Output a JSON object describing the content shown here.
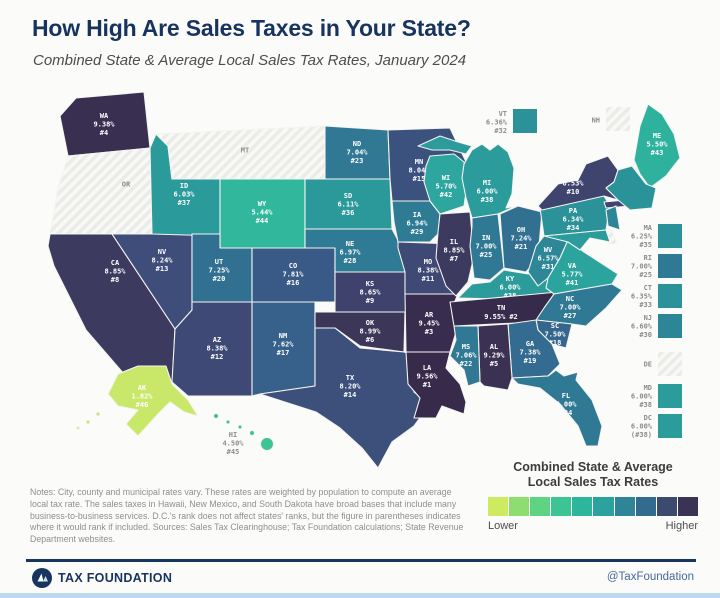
{
  "header": {
    "title": "How High Are Sales Taxes in Your State?",
    "subtitle": "Combined State & Average Local Sales Tax Rates, January 2024"
  },
  "legend": {
    "title_line1": "Combined State & Average",
    "title_line2": "Local Sales Tax Rates",
    "lower_label": "Lower",
    "higher_label": "Higher",
    "ramp": [
      "#cdea61",
      "#8edd70",
      "#5ed384",
      "#3cc495",
      "#2eb69c",
      "#2aa39e",
      "#2e8597",
      "#336b8e",
      "#3d4a6f",
      "#3b3354"
    ]
  },
  "notes": "Notes: City, county and municipal rates vary. These rates are weighted by population to compute an average local tax rate. The sales taxes in Hawaii, New Mexico, and South Dakota have broad bases that include many business-to-business services. D.C.'s rank does not affect states' ranks, but the figure in parentheses indicates where it would rank if included. Sources: Sales Tax Clearinghouse; Tax Foundation calculations; State Revenue Department websites.",
  "footer": {
    "brand": "TAX FOUNDATION",
    "handle": "@TaxFoundation"
  },
  "states": {
    "WA": {
      "abbr": "WA",
      "rate": "9.38%",
      "rank": "#4",
      "color": "#392f50"
    },
    "OR": {
      "abbr": "OR",
      "color": "hatch"
    },
    "CA": {
      "abbr": "CA",
      "rate": "8.85%",
      "rank": "#8",
      "color": "#3d3a60"
    },
    "NV": {
      "abbr": "NV",
      "rate": "8.24%",
      "rank": "#13",
      "color": "#3e4d79"
    },
    "ID": {
      "abbr": "ID",
      "rate": "6.03%",
      "rank": "#37",
      "color": "#2b9a9b"
    },
    "MT": {
      "abbr": "MT",
      "color": "hatch"
    },
    "WY": {
      "abbr": "WY",
      "rate": "5.44%",
      "rank": "#44",
      "color": "#31b89c"
    },
    "UT": {
      "abbr": "UT",
      "rate": "7.25%",
      "rank": "#20",
      "color": "#327092"
    },
    "CO": {
      "abbr": "CO",
      "rate": "7.81%",
      "rank": "#16",
      "color": "#395a86"
    },
    "AZ": {
      "abbr": "AZ",
      "rate": "8.38%",
      "rank": "#12",
      "color": "#3f4975"
    },
    "NM": {
      "abbr": "NM",
      "rate": "7.62%",
      "rank": "#17",
      "color": "#37618b"
    },
    "ND": {
      "abbr": "ND",
      "rate": "7.04%",
      "rank": "#23",
      "color": "#307893"
    },
    "SD": {
      "abbr": "SD",
      "rate": "6.11%",
      "rank": "#36",
      "color": "#2b989a"
    },
    "NE": {
      "abbr": "NE",
      "rate": "6.97%",
      "rank": "#28",
      "color": "#2f7a94"
    },
    "KS": {
      "abbr": "KS",
      "rate": "8.65%",
      "rank": "#9",
      "color": "#3f426c"
    },
    "OK": {
      "abbr": "OK",
      "rate": "8.99%",
      "rank": "#6",
      "color": "#3c3659"
    },
    "TX": {
      "abbr": "TX",
      "rate": "8.20%",
      "rank": "#14",
      "color": "#3d4f7b"
    },
    "MN": {
      "abbr": "MN",
      "rate": "8.04%",
      "rank": "#15",
      "color": "#3c527e"
    },
    "IA": {
      "abbr": "IA",
      "rate": "6.94%",
      "rank": "#29",
      "color": "#2f7b94"
    },
    "MO": {
      "abbr": "MO",
      "rate": "8.38%",
      "rank": "#11",
      "color": "#3f4975"
    },
    "AR": {
      "abbr": "AR",
      "rate": "9.45%",
      "rank": "#3",
      "color": "#382d4e"
    },
    "LA": {
      "abbr": "LA",
      "rate": "9.56%",
      "rank": "#1",
      "color": "#372a4b"
    },
    "WI": {
      "abbr": "WI",
      "rate": "5.70%",
      "rank": "#42",
      "color": "#2ca69e"
    },
    "MI": {
      "abbr": "MI",
      "rate": "6.00%",
      "rank": "#38",
      "color": "#2b9b9b"
    },
    "IL": {
      "abbr": "IL",
      "rate": "8.85%",
      "rank": "#7",
      "color": "#3d3a60"
    },
    "IN": {
      "abbr": "IN",
      "rate": "7.00%",
      "rank": "#25",
      "color": "#307994"
    },
    "OH": {
      "abbr": "OH",
      "rate": "7.24%",
      "rank": "#21",
      "color": "#327092"
    },
    "KY": {
      "abbr": "KY",
      "rate": "6.00%",
      "rank": "#38",
      "color": "#2b9b9b"
    },
    "WV": {
      "abbr": "WV",
      "rate": "6.57%",
      "rank": "#31",
      "color": "#2d8797"
    },
    "VA": {
      "abbr": "VA",
      "rate": "5.77%",
      "rank": "#41",
      "color": "#2ba49e"
    },
    "TN": {
      "abbr": "TN",
      "rate": "9.55%",
      "rank": "#2",
      "color": "#372b4c"
    },
    "NC": {
      "abbr": "NC",
      "rate": "7.00%",
      "rank": "#27",
      "color": "#307994"
    },
    "SC": {
      "abbr": "SC",
      "rate": "7.50%",
      "rank": "#18",
      "color": "#35668e"
    },
    "GA": {
      "abbr": "GA",
      "rate": "7.38%",
      "rank": "#19",
      "color": "#346b90"
    },
    "AL": {
      "abbr": "AL",
      "rate": "9.29%",
      "rank": "#5",
      "color": "#3a3153"
    },
    "MS": {
      "abbr": "MS",
      "rate": "7.06%",
      "rank": "#22",
      "color": "#307893"
    },
    "FL": {
      "abbr": "FL",
      "rate": "7.00%",
      "rank": "#24",
      "color": "#307994"
    },
    "PA": {
      "abbr": "PA",
      "rate": "6.34%",
      "rank": "#34",
      "color": "#2a9298"
    },
    "NY": {
      "abbr": "NY",
      "rate": "8.53%",
      "rank": "#10",
      "color": "#3f446f"
    },
    "VT": {
      "abbr": "VT",
      "rate": "6.36%",
      "rank": "#32",
      "color": "#2a9298"
    },
    "NH": {
      "abbr": "NH",
      "color": "hatch"
    },
    "ME": {
      "abbr": "ME",
      "rate": "5.50%",
      "rank": "#43",
      "color": "#2fb29d"
    },
    "MA": {
      "abbr": "MA",
      "rate": "6.25%",
      "rank": "#35",
      "color": "#2a9399"
    },
    "RI": {
      "abbr": "RI",
      "rate": "7.00%",
      "rank": "#25",
      "color": "#307994"
    },
    "CT": {
      "abbr": "CT",
      "rate": "6.35%",
      "rank": "#33",
      "color": "#2a9298"
    },
    "NJ": {
      "abbr": "NJ",
      "rate": "6.60%",
      "rank": "#30",
      "color": "#2d8697"
    },
    "DE": {
      "abbr": "DE",
      "color": "hatch"
    },
    "MD": {
      "abbr": "MD",
      "rate": "6.00%",
      "rank": "#38",
      "color": "#2b9b9b"
    },
    "DC": {
      "abbr": "DC",
      "rate": "6.00%",
      "rank": "(#38)",
      "color": "#2b9b9b"
    },
    "AK": {
      "abbr": "AK",
      "rate": "1.82%",
      "rank": "#46",
      "color": "#c9e869"
    },
    "HI": {
      "abbr": "HI",
      "rate": "4.50%",
      "rank": "#45",
      "color": "#3dc396"
    }
  }
}
